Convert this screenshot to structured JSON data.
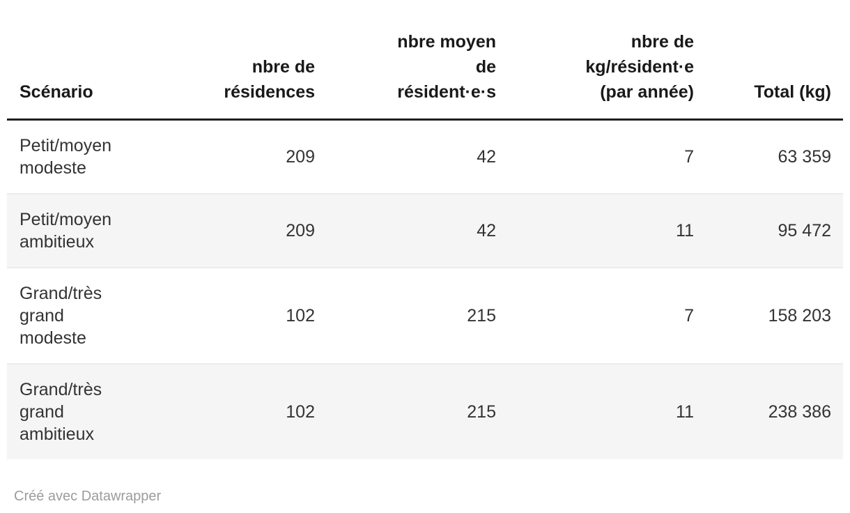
{
  "colors": {
    "background": "#ffffff",
    "text": "#333333",
    "header_text": "#191919",
    "header_rule": "#1f1f1f",
    "row_divider": "#ececec",
    "stripe": "#f5f5f5",
    "footer_text": "#9c9c9c"
  },
  "table": {
    "columns": [
      "Scénario",
      "nbre de\nrésidences",
      "nbre moyen\nde\nrésident·e·s",
      "nbre de\nkg/résident·e\n(par année)",
      "Total (kg)"
    ],
    "rows": [
      [
        "Petit/moyen\nmodeste",
        "209",
        "42",
        "7",
        "63 359"
      ],
      [
        "Petit/moyen\nambitieux",
        "209",
        "42",
        "11",
        "95 472"
      ],
      [
        "Grand/très\ngrand\nmodeste",
        "102",
        "215",
        "7",
        "158 203"
      ],
      [
        "Grand/très\ngrand\nambitieux",
        "102",
        "215",
        "11",
        "238 386"
      ]
    ]
  },
  "footer": {
    "attribution": "Créé avec Datawrapper"
  },
  "chart_data": {
    "type": "table",
    "title": "",
    "columns": [
      "Scénario",
      "nbre de résidences",
      "nbre moyen de résident·e·s",
      "nbre de kg/résident·e (par année)",
      "Total (kg)"
    ],
    "rows": [
      {
        "scenario": "Petit/moyen modeste",
        "residences": 209,
        "avg_residents": 42,
        "kg_per_resident_per_year": 7,
        "total_kg": 63359
      },
      {
        "scenario": "Petit/moyen ambitieux",
        "residences": 209,
        "avg_residents": 42,
        "kg_per_resident_per_year": 11,
        "total_kg": 95472
      },
      {
        "scenario": "Grand/très grand modeste",
        "residences": 102,
        "avg_residents": 215,
        "kg_per_resident_per_year": 7,
        "total_kg": 158203
      },
      {
        "scenario": "Grand/très grand ambitieux",
        "residences": 102,
        "avg_residents": 215,
        "kg_per_resident_per_year": 11,
        "total_kg": 238386
      }
    ],
    "layout_hints": {
      "numeric_columns_align": "right",
      "striped_rows": [
        2,
        4
      ],
      "header_rule": true
    }
  }
}
